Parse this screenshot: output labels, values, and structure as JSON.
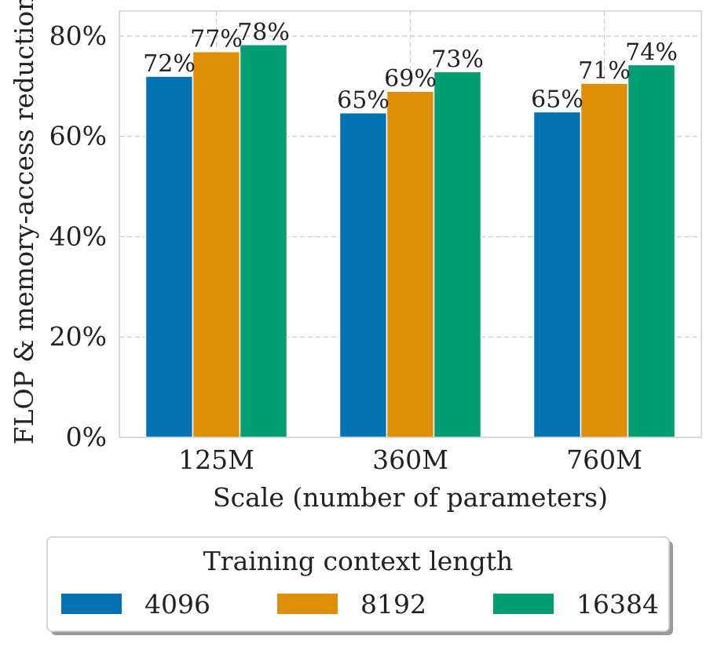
{
  "chart_data": {
    "type": "bar",
    "title": "",
    "xlabel": "Scale (number of parameters)",
    "ylabel": "FLOP & memory-access reduction",
    "categories": [
      "125M",
      "360M",
      "760M"
    ],
    "ylim": [
      0,
      85
    ],
    "yticks": [
      0,
      20,
      40,
      60,
      80
    ],
    "ytick_labels": [
      "0%",
      "20%",
      "40%",
      "60%",
      "80%"
    ],
    "grid": true,
    "series": [
      {
        "name": "4096",
        "color": "#0173b2",
        "values": [
          72,
          64.7,
          64.9
        ],
        "labels": [
          "72%",
          "65%",
          "65%"
        ]
      },
      {
        "name": "8192",
        "color": "#de8f05",
        "values": [
          76.9,
          69.0,
          70.6
        ],
        "labels": [
          "77%",
          "69%",
          "71%"
        ]
      },
      {
        "name": "16384",
        "color": "#029e73",
        "values": [
          78.3,
          72.9,
          74.3
        ],
        "labels": [
          "78%",
          "73%",
          "74%"
        ]
      }
    ],
    "legend": {
      "title": "Training context length",
      "placement": "bottom"
    }
  }
}
